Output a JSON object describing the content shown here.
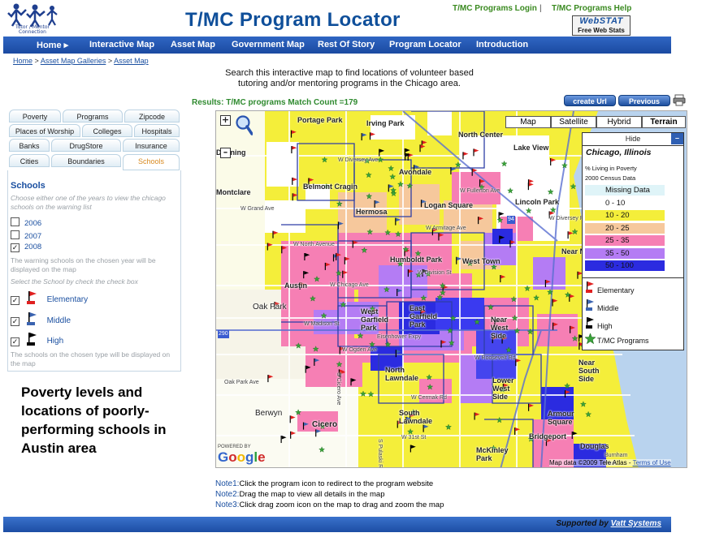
{
  "header": {
    "logo_caption": "Tutor / Mentor Connection",
    "title": "T/MC Program Locator",
    "top_links": {
      "login": "T/MC Programs Login",
      "separator": "|",
      "help": "T/MC Programs Help"
    },
    "webstat": {
      "logo": "WebSTAT",
      "caption": "Free Web Stats"
    }
  },
  "nav": {
    "items": [
      {
        "label": "Home",
        "arrow": "▸"
      },
      {
        "label": "Interactive Map"
      },
      {
        "label": "Asset Map"
      },
      {
        "label": "Government Map"
      },
      {
        "label": "Rest Of Story"
      },
      {
        "label": "Program Locator"
      },
      {
        "label": "Introduction"
      }
    ]
  },
  "breadcrumb": {
    "items": [
      "Home",
      "Asset Map Galleries",
      "Asset Map"
    ],
    "separator": ">"
  },
  "intro": "Search this interactive map to find locations of volunteer based tutoring and/or mentoring programs in the Chicago area.",
  "results": {
    "label": "Results: T/MC programs Match Count =179"
  },
  "buttons": {
    "create_url": "create Url",
    "previous_zoom": "Previous Zoom"
  },
  "tabs": {
    "rows": [
      [
        "Poverty",
        "Programs",
        "Zipcode"
      ],
      [
        "Places of Worship",
        "Colleges",
        "Hospitals"
      ],
      [
        "Banks",
        "DrugStore",
        "Insurance"
      ],
      [
        "Cities",
        "Boundaries",
        "Schools"
      ]
    ],
    "active": "Schools"
  },
  "schools": {
    "title": "Schools",
    "year_hint": "Choose either one of the years to view the chicago schools on the warning list",
    "years": [
      {
        "label": "2006",
        "checked": false
      },
      {
        "label": "2007",
        "checked": false
      },
      {
        "label": "2008",
        "checked": true
      }
    ],
    "year_note": "The warning schools on the chosen year will be displayed on the map",
    "type_hint": "Select the School by check the check box",
    "types": [
      {
        "label": "Elementary",
        "checked": true,
        "color": "#e02020"
      },
      {
        "label": "Middle",
        "checked": true,
        "color": "#3a63b0"
      },
      {
        "label": "High",
        "checked": true,
        "color": "#000000"
      }
    ],
    "type_note": "The schools on the chosen type will be displayed on the map"
  },
  "caption": "Poverty levels and locations of poorly-performing schools in Austin area",
  "map": {
    "types": [
      "Map",
      "Satellite",
      "Hybrid",
      "Terrain"
    ],
    "selected_type": "Terrain",
    "legend": {
      "hide_label": "Hide",
      "minus": "–",
      "city": "Chicago, Illinois",
      "metric": "% Living in Poverty",
      "source": "2000 Census Data",
      "bins": [
        {
          "label": "Missing Data",
          "color": "#dff4f8"
        },
        {
          "label": "0 - 10",
          "color": "#ffffff"
        },
        {
          "label": "10 - 20",
          "color": "#f4ee3a"
        },
        {
          "label": "20 - 25",
          "color": "#f6c89c"
        },
        {
          "label": "25 - 35",
          "color": "#f67fb4"
        },
        {
          "label": "35 - 50",
          "color": "#b47cf4"
        },
        {
          "label": "50 - 100",
          "color": "#2b2be0"
        }
      ],
      "markers": [
        {
          "label": "Elementary",
          "icon": "red-flag-icon"
        },
        {
          "label": "Middle",
          "icon": "blue-flag-icon"
        },
        {
          "label": "High",
          "icon": "black-flag-icon"
        },
        {
          "label": "T/MC Programs",
          "icon": "green-star-icon"
        }
      ]
    },
    "places": [
      "Portage Park",
      "Irving Park",
      "North Center",
      "Lake View",
      "Dunning",
      "Belmont Cragin",
      "Montclare",
      "Avondale",
      "Hermosa",
      "Logan Square",
      "Lincoln Park",
      "W Grand Ave",
      "W North Avenue",
      "Humboldt Park",
      "West Town",
      "Near North Side",
      "Austin",
      "W Chicago Ave",
      "Oak Park",
      "West Garfield Park",
      "East Garfield Park",
      "W Madison St",
      "Near West Side",
      "W Roosevelt Rd",
      "North Lawndale",
      "South Lawndale",
      "W Cermak Rd",
      "Lower West Side",
      "Near South Side",
      "Berwyn",
      "Cicero",
      "W 31st St",
      "Armour Square",
      "Bridgeport",
      "McKinley Park",
      "Douglas",
      "Burnham Park",
      "Eisenhower Expy",
      "Oak Park Ave",
      "S Cicero Ave",
      "S Pulaski Rd",
      "W Ogden Ave",
      "W Armitage Ave",
      "W Division St",
      "W Fullerton Ave",
      "W Diversey Ave",
      "290",
      "94",
      "W Diversey Pkwy"
    ],
    "powered_by": "POWERED BY",
    "google": [
      "G",
      "o",
      "o",
      "g",
      "l",
      "e"
    ],
    "credit": "Map data ©2009 Tele Atlas - ",
    "terms": "Terms of Use",
    "zoom_in": "+",
    "zoom_out": "–"
  },
  "notes": [
    {
      "label": "Note1:",
      "text": "Click the program icon to redirect to the program website"
    },
    {
      "label": "Note2:",
      "text": "Drag the map to view all details in the map"
    },
    {
      "label": "Note3:",
      "text": "Click drag zoom icon on the map to drag and zoom the map"
    }
  ],
  "footer": {
    "prefix": "Supported by ",
    "link": "Vatt Systems"
  },
  "colors": {
    "nav": "#2457b3",
    "title": "#0f4f9a",
    "link_green": "#3a8a20"
  }
}
